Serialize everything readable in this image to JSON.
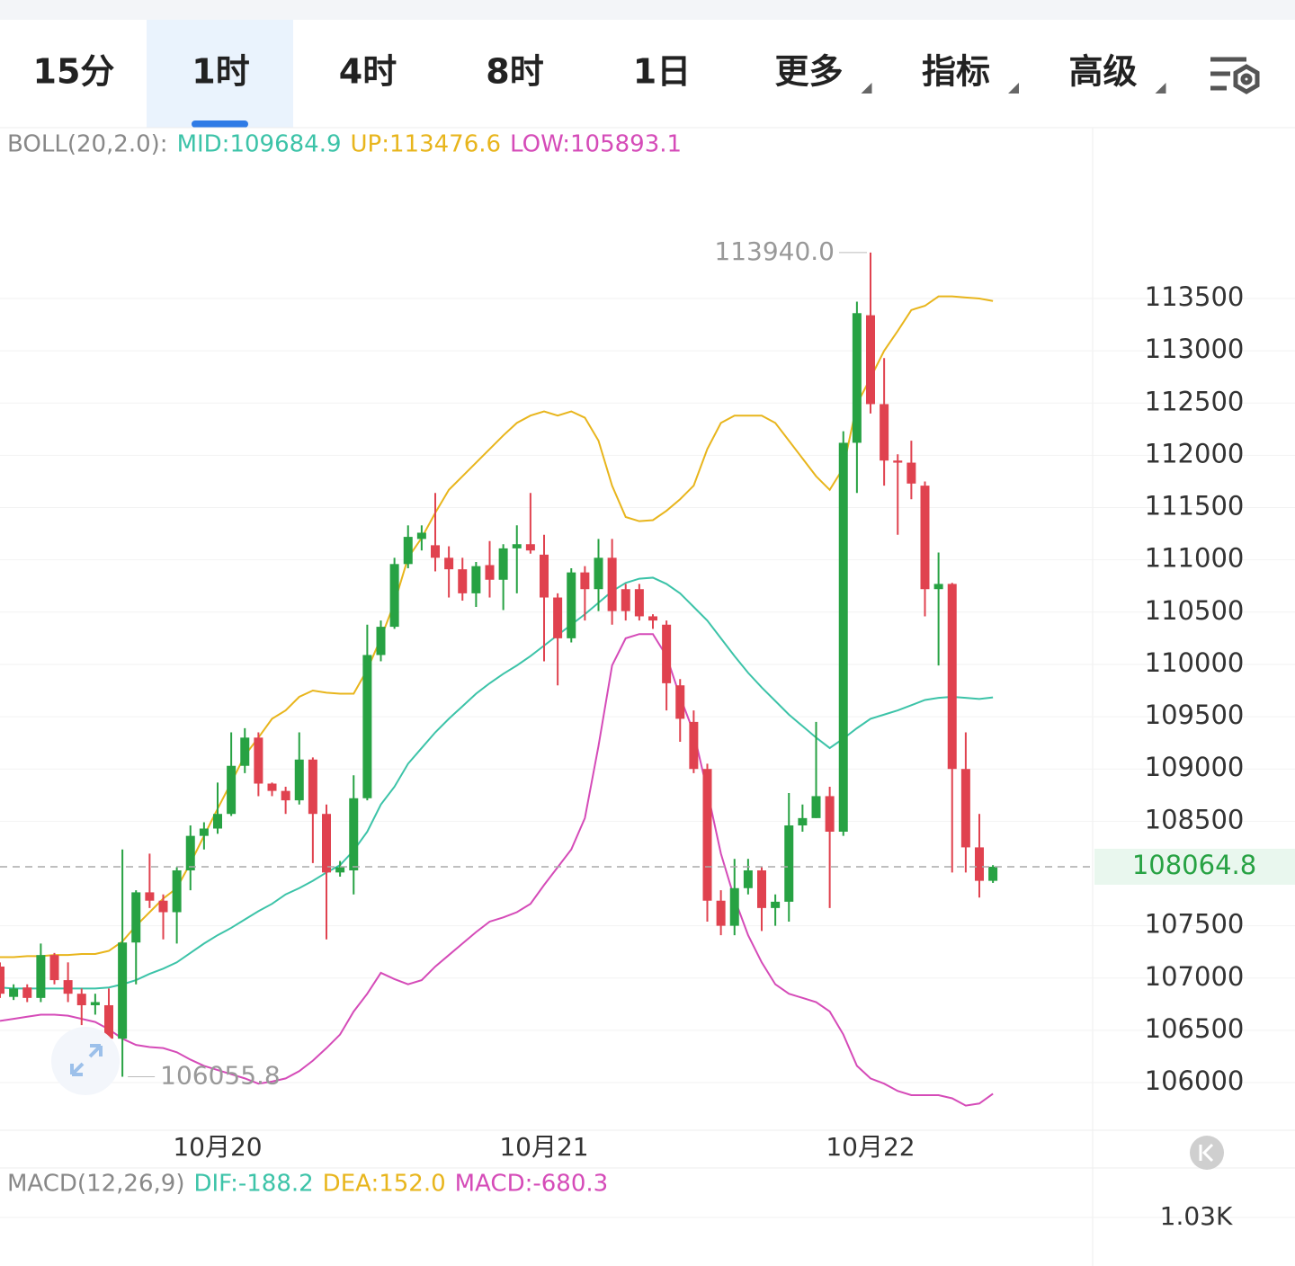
{
  "tabs": [
    "15分",
    "1时",
    "4时",
    "8时",
    "1日",
    "更多",
    "指标",
    "高级"
  ],
  "selected_tab": 1,
  "chart_data": {
    "type": "candlestick",
    "indicator_legend": [
      "BOLL(20,2.0):",
      "MID:109684.9",
      "UP:113476.6",
      "LOW:105893.1"
    ],
    "categories": [
      null,
      null,
      null,
      null,
      null,
      null,
      null,
      null,
      null,
      null,
      null,
      null,
      null,
      null,
      null,
      null,
      "10月20",
      null,
      null,
      null,
      null,
      null,
      null,
      null,
      null,
      null,
      null,
      null,
      null,
      null,
      null,
      null,
      null,
      null,
      null,
      null,
      null,
      null,
      null,
      null,
      "10月21",
      null,
      null,
      null,
      null,
      null,
      null,
      null,
      null,
      null,
      null,
      null,
      null,
      null,
      null,
      null,
      null,
      null,
      null,
      null,
      null,
      null,
      null,
      null,
      "10月22",
      null,
      null,
      null,
      null,
      null,
      null,
      null,
      null,
      null
    ],
    "open": [
      107110,
      106820,
      106910,
      106810,
      107220,
      106980,
      106850,
      106740,
      106740,
      106420,
      107340,
      107820,
      107740,
      107630,
      108030,
      108360,
      108430,
      108570,
      109030,
      109300,
      108860,
      108790,
      108700,
      109090,
      108570,
      108010,
      108030,
      108720,
      110090,
      110360,
      110960,
      111200,
      111140,
      111020,
      110910,
      110680,
      110950,
      110810,
      111110,
      111150,
      111050,
      110640,
      110250,
      110880,
      110720,
      111020,
      110720,
      110720,
      110460,
      110380,
      109800,
      109450,
      109000,
      107740,
      107500,
      107860,
      108030,
      107670,
      107730,
      108460,
      108530,
      108740,
      108400,
      112120,
      113340,
      112490,
      111950,
      111930,
      111710,
      110720,
      110770,
      109000,
      108250,
      107930
    ],
    "high": [
      107150,
      106940,
      106940,
      107330,
      107240,
      107150,
      106900,
      106850,
      106900,
      108230,
      107840,
      108190,
      107800,
      108060,
      108460,
      108490,
      108870,
      109350,
      109390,
      109350,
      108870,
      108830,
      109350,
      109110,
      108660,
      108120,
      108940,
      110380,
      110420,
      111020,
      111330,
      111330,
      111640,
      111130,
      111020,
      110980,
      111180,
      111150,
      111330,
      111640,
      111240,
      110680,
      110920,
      110940,
      111200,
      111200,
      110770,
      110770,
      110480,
      110420,
      109860,
      109560,
      109050,
      107840,
      108140,
      108140,
      108060,
      107800,
      108770,
      108660,
      109450,
      108830,
      112230,
      113470,
      113940,
      112930,
      112010,
      112140,
      111750,
      111070,
      110780,
      109350,
      108570,
      108080
    ],
    "low": [
      106810,
      106790,
      106770,
      106770,
      106940,
      106770,
      106550,
      106650,
      106210,
      106055.8,
      106940,
      107670,
      107370,
      107330,
      107840,
      108230,
      108380,
      108550,
      108960,
      108740,
      108740,
      108570,
      108660,
      108100,
      107370,
      107970,
      107800,
      108700,
      110030,
      110340,
      110920,
      111090,
      110890,
      110640,
      110610,
      110550,
      110640,
      110520,
      110680,
      111060,
      110030,
      109800,
      110210,
      110420,
      110510,
      110380,
      110420,
      110420,
      110340,
      109560,
      109260,
      108960,
      107540,
      107410,
      107410,
      107800,
      107450,
      107500,
      107540,
      108400,
      108530,
      107670,
      108360,
      111640,
      112400,
      111710,
      111240,
      111580,
      110460,
      109990,
      108010,
      108010,
      107770,
      107910
    ],
    "close": [
      106850,
      106900,
      106810,
      107220,
      106980,
      106850,
      106740,
      106770,
      106420,
      107340,
      107820,
      107740,
      107630,
      108030,
      108360,
      108430,
      108570,
      109030,
      109300,
      108860,
      108790,
      108700,
      109090,
      108570,
      108010,
      108060,
      108720,
      110090,
      110360,
      110960,
      111220,
      111260,
      111020,
      110910,
      110680,
      110940,
      110810,
      111110,
      111150,
      111090,
      110640,
      110250,
      110880,
      110720,
      111020,
      110510,
      110510,
      110460,
      110420,
      109820,
      109480,
      109000,
      107740,
      107500,
      107860,
      108030,
      107670,
      107730,
      108460,
      108530,
      108740,
      108400,
      112120,
      113360,
      112490,
      111950,
      111930,
      111730,
      110720,
      110770,
      109000,
      108250,
      107930,
      108064.8
    ],
    "up_color": "#27a243",
    "down_color": "#e0424f",
    "series": [
      {
        "label": "MID:109684.9",
        "color": "#3cc3a8",
        "values": [
          106910,
          106900,
          106900,
          106900,
          106900,
          106900,
          106900,
          106900,
          106910,
          106940,
          106980,
          107040,
          107090,
          107150,
          107240,
          107330,
          107410,
          107480,
          107560,
          107640,
          107710,
          107800,
          107860,
          107930,
          108010,
          108080,
          108220,
          108400,
          108660,
          108830,
          109050,
          109200,
          109350,
          109480,
          109600,
          109720,
          109820,
          109910,
          109990,
          110080,
          110180,
          110280,
          110380,
          110480,
          110590,
          110700,
          110780,
          110820,
          110830,
          110770,
          110680,
          110550,
          110420,
          110250,
          110080,
          109920,
          109780,
          109650,
          109520,
          109410,
          109300,
          109200,
          109290,
          109390,
          109480,
          109520,
          109560,
          109610,
          109660,
          109680,
          109690,
          109680,
          109670,
          109684.9
        ]
      },
      {
        "label": "UP:113476.6",
        "color": "#e8b51c",
        "values": [
          107200,
          107200,
          107210,
          107210,
          107220,
          107220,
          107230,
          107230,
          107260,
          107350,
          107500,
          107630,
          107760,
          107860,
          108100,
          108360,
          108620,
          108870,
          109130,
          109300,
          109480,
          109560,
          109690,
          109750,
          109730,
          109720,
          109720,
          109950,
          110250,
          110590,
          111020,
          111210,
          111450,
          111670,
          111800,
          111930,
          112060,
          112190,
          112310,
          112380,
          112420,
          112380,
          112420,
          112360,
          112140,
          111710,
          111410,
          111370,
          111380,
          111470,
          111580,
          111710,
          112060,
          112310,
          112380,
          112380,
          112380,
          112310,
          112140,
          111970,
          111800,
          111670,
          111880,
          112490,
          112740,
          113000,
          113190,
          113390,
          113430,
          113520,
          113520,
          113510,
          113500,
          113476.6
        ]
      },
      {
        "label": "LOW:105893.1",
        "color": "#d54bb8",
        "values": [
          106590,
          106610,
          106630,
          106650,
          106650,
          106640,
          106610,
          106580,
          106510,
          106420,
          106360,
          106340,
          106330,
          106290,
          106220,
          106160,
          106120,
          106080,
          106040,
          105990,
          106010,
          106040,
          106110,
          106210,
          106330,
          106460,
          106680,
          106850,
          107050,
          106990,
          106940,
          106980,
          107110,
          107220,
          107330,
          107440,
          107540,
          107580,
          107630,
          107710,
          107890,
          108060,
          108230,
          108530,
          109220,
          109990,
          110250,
          110290,
          110290,
          110080,
          109690,
          109350,
          108790,
          108190,
          107760,
          107410,
          107150,
          106940,
          106850,
          106810,
          106770,
          106680,
          106460,
          106160,
          106040,
          105990,
          105920,
          105880,
          105880,
          105880,
          105850,
          105780,
          105800,
          105893.1
        ]
      }
    ],
    "ylim": [
      105600,
      114800
    ],
    "yticks": [
      106000,
      106500,
      107000,
      107500,
      108500,
      109000,
      109500,
      110000,
      110500,
      111000,
      111500,
      112000,
      112500,
      113000,
      113500
    ],
    "grid": true,
    "high_label": "113940.0",
    "low_label": "106055.8",
    "last_price_label": "108064.8"
  },
  "macd": {
    "legend": [
      "MACD(12,26,9)",
      "DIF:-188.2",
      "DEA:152.0",
      "MACD:-680.3"
    ],
    "yticks": [
      {
        "value": 1030,
        "label": "1.03K"
      }
    ]
  }
}
